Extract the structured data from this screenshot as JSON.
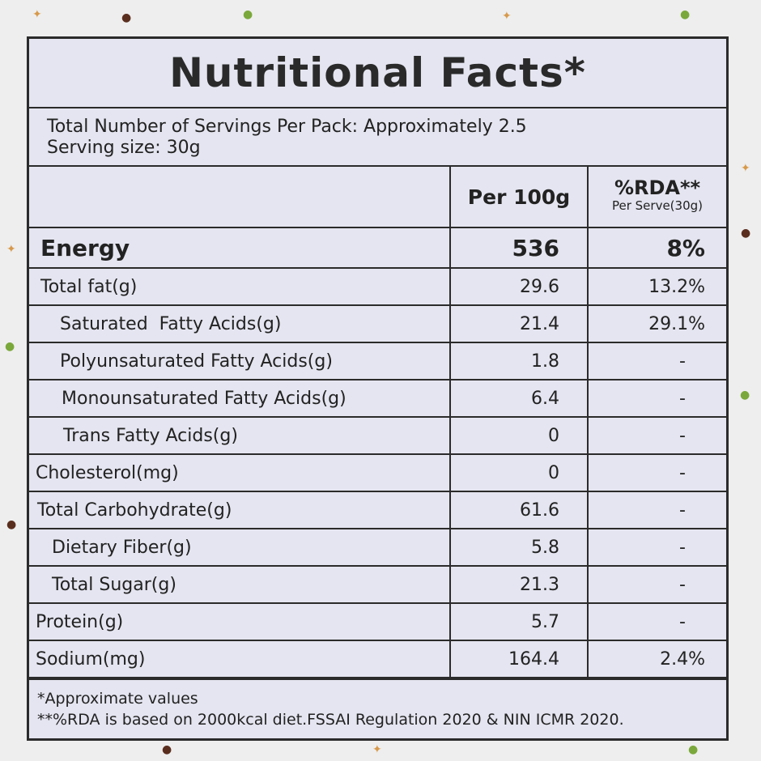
{
  "title": "Nutritional Facts*",
  "servings_line": "Total Number of Servings Per Pack: Approximately 2.5",
  "serving_size_line": "Serving size: 30g",
  "headers": {
    "per100": "Per 100g",
    "rda": "%RDA**",
    "rda_sub": "Per Serve(30g)"
  },
  "energy": {
    "label": "Energy",
    "per100": "536",
    "rda": "8%"
  },
  "rows": [
    {
      "label": "Total fat(g)",
      "per100": "29.6",
      "rda": "13.2%"
    },
    {
      "label": "Saturated  Fatty Acids(g)",
      "per100": "21.4",
      "rda": "29.1%"
    },
    {
      "label": "Polyunsaturated Fatty Acids(g)",
      "per100": "1.8",
      "rda": "-"
    },
    {
      "label": "Monounsaturated Fatty Acids(g)",
      "per100": "6.4",
      "rda": "-"
    },
    {
      "label": "Trans Fatty Acids(g)",
      "per100": "0",
      "rda": "-"
    },
    {
      "label": "Cholesterol(mg)",
      "per100": "0",
      "rda": "-"
    },
    {
      "label": "Total Carbohydrate(g)",
      "per100": "61.6",
      "rda": "-"
    },
    {
      "label": "Dietary Fiber(g)",
      "per100": "5.8",
      "rda": "-"
    },
    {
      "label": "Total Sugar(g)",
      "per100": "21.3",
      "rda": "-"
    },
    {
      "label": "Protein(g)",
      "per100": "5.7",
      "rda": "-"
    },
    {
      "label": "Sodium(mg)",
      "per100": "164.4",
      "rda": "2.4%"
    }
  ],
  "footnotes": [
    "*Approximate values",
    "**%RDA is based on 2000kcal diet.FSSAI Regulation 2020 & NIN ICMR 2020."
  ]
}
